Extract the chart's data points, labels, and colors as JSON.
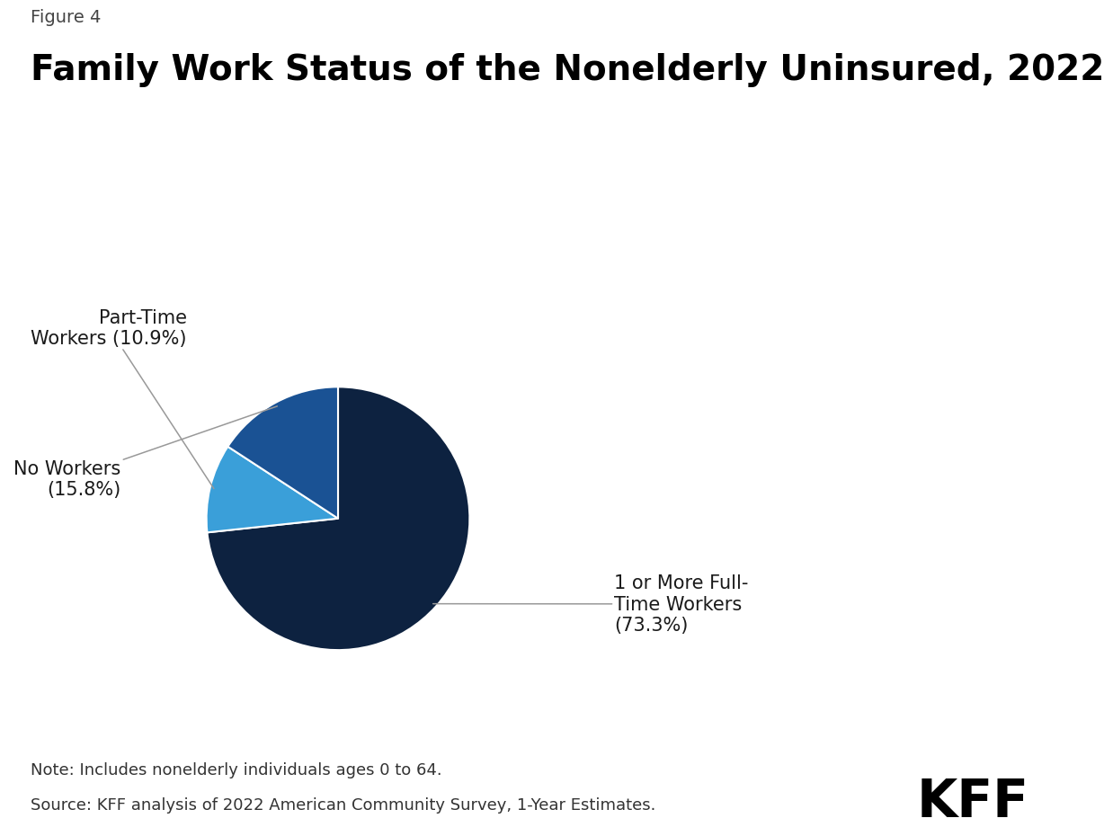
{
  "figure_label": "Figure 4",
  "title": "Family Work Status of the Nonelderly Uninsured, 2022",
  "slices": [
    {
      "label": "1 or More Full-\nTime Workers\n(73.3%)",
      "value": 73.3,
      "color": "#0d2240"
    },
    {
      "label": "Part-Time\nWorkers (10.9%)",
      "value": 10.9,
      "color": "#3a9fd9"
    },
    {
      "label": "No Workers\n(15.8%)",
      "value": 15.8,
      "color": "#1a5294"
    }
  ],
  "note": "Note: Includes nonelderly individuals ages 0 to 64.",
  "source": "Source: KFF analysis of 2022 American Community Survey, 1-Year Estimates.",
  "kff_logo_text": "KFF",
  "background_color": "#ffffff",
  "wedge_edge_color": "#ffffff",
  "annotation_line_color": "#999999",
  "title_fontsize": 28,
  "figure_label_fontsize": 14,
  "annotation_fontsize": 15,
  "note_fontsize": 13
}
